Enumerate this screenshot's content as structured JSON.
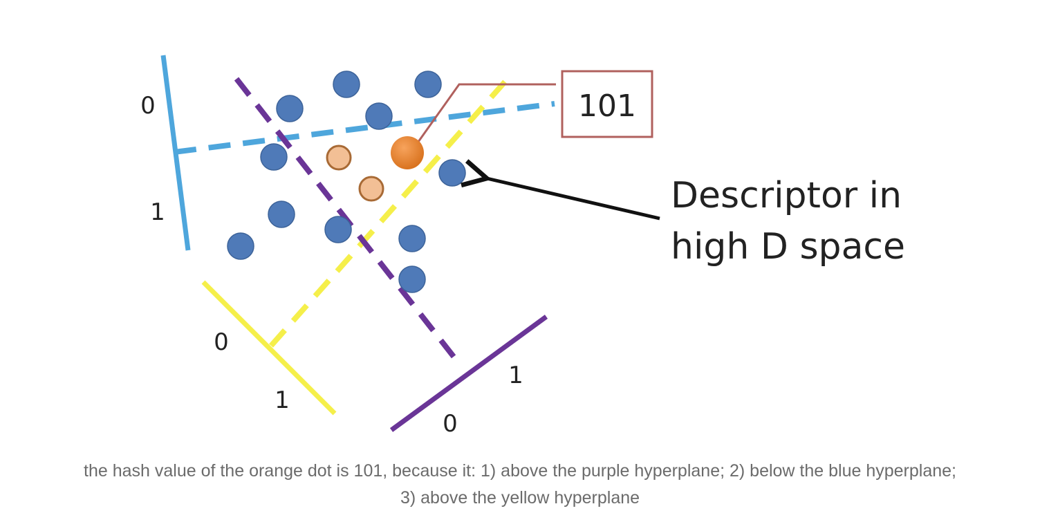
{
  "diagram": {
    "hyperplanes": [
      {
        "name": "blue",
        "color": "#4ea6dc",
        "side_labels": [
          "0",
          "1"
        ]
      },
      {
        "name": "yellow",
        "color": "#f5ef4a",
        "side_labels": [
          "0",
          "1"
        ]
      },
      {
        "name": "purple",
        "color": "#6a3597",
        "side_labels": [
          "1",
          "0"
        ]
      }
    ],
    "hash_code": "101",
    "callout_lines": [
      "Descriptor in",
      "high D space"
    ],
    "colors": {
      "descriptor_dot": "#4f7ab8",
      "descriptor_dot_outline": "#3d6399",
      "neighbor_dot": "#f2bf95",
      "neighbor_dot_outline": "#a86a35",
      "query_dot": "#e88530",
      "code_box_border": "#b0605d",
      "arrow": "#111111"
    }
  },
  "caption": {
    "line1": "the hash value of the orange dot is 101, because it: 1) above the purple hyperplane; 2) below the blue hyperplane;",
    "line2": "3) above the yellow hyperplane"
  }
}
